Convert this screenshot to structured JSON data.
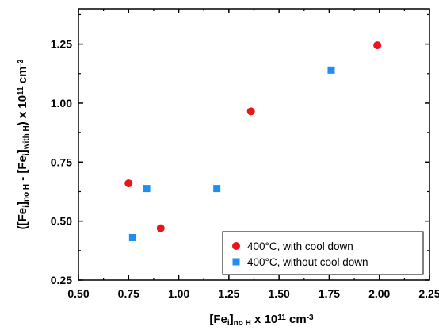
{
  "chart_data": {
    "type": "scatter",
    "xlabel": {
      "parts": [
        {
          "t": "[Fe",
          "s": "n"
        },
        {
          "t": "i",
          "s": "sub"
        },
        {
          "t": "]",
          "s": "n"
        },
        {
          "t": "no H",
          "s": "sub"
        },
        {
          "t": " x 10",
          "s": "n"
        },
        {
          "t": "11",
          "s": "sup"
        },
        {
          "t": " cm",
          "s": "n"
        },
        {
          "t": "-3",
          "s": "sup"
        }
      ]
    },
    "ylabel": {
      "parts": [
        {
          "t": "([Fe",
          "s": "n"
        },
        {
          "t": "i",
          "s": "sub"
        },
        {
          "t": "]",
          "s": "n"
        },
        {
          "t": "no H",
          "s": "sub"
        },
        {
          "t": " - [Fe",
          "s": "n"
        },
        {
          "t": "i",
          "s": "sub"
        },
        {
          "t": "]",
          "s": "n"
        },
        {
          "t": "with H",
          "s": "sub"
        },
        {
          "t": ")  x 10",
          "s": "n"
        },
        {
          "t": "11",
          "s": "sup"
        },
        {
          "t": " cm",
          "s": "n"
        },
        {
          "t": "-3",
          "s": "sup"
        }
      ]
    },
    "xlim": [
      0.5,
      2.25
    ],
    "ylim": [
      0.25,
      1.4
    ],
    "x_ticks": [
      "0.50",
      "0.75",
      "1.00",
      "1.25",
      "1.50",
      "1.75",
      "2.00",
      "2.25"
    ],
    "y_ticks": [
      "0.25",
      "0.50",
      "0.75",
      "1.00",
      "1.25"
    ],
    "grid": false,
    "legend_position": "bottom-right",
    "series": [
      {
        "name": "400°C, with cool down",
        "marker": "circle",
        "color": "#e8151b",
        "points": [
          [
            0.75,
            0.66
          ],
          [
            0.91,
            0.47
          ],
          [
            1.36,
            0.965
          ],
          [
            1.99,
            1.245
          ]
        ]
      },
      {
        "name": "400°C, without cool down",
        "marker": "square",
        "color": "#1e8ff0",
        "points": [
          [
            0.77,
            0.43
          ],
          [
            0.84,
            0.638
          ],
          [
            1.19,
            0.638
          ],
          [
            1.76,
            1.14
          ]
        ]
      }
    ]
  }
}
